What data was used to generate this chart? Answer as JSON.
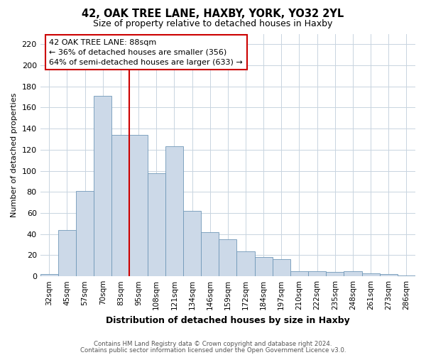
{
  "title1": "42, OAK TREE LANE, HAXBY, YORK, YO32 2YL",
  "title2": "Size of property relative to detached houses in Haxby",
  "xlabel": "Distribution of detached houses by size in Haxby",
  "ylabel": "Number of detached properties",
  "categories": [
    "32sqm",
    "45sqm",
    "57sqm",
    "70sqm",
    "83sqm",
    "95sqm",
    "108sqm",
    "121sqm",
    "134sqm",
    "146sqm",
    "159sqm",
    "172sqm",
    "184sqm",
    "197sqm",
    "210sqm",
    "222sqm",
    "235sqm",
    "248sqm",
    "261sqm",
    "273sqm",
    "286sqm"
  ],
  "values": [
    2,
    44,
    81,
    171,
    134,
    134,
    98,
    123,
    62,
    42,
    35,
    24,
    18,
    16,
    5,
    5,
    4,
    5,
    3,
    2,
    1
  ],
  "bar_color": "#ccd9e8",
  "bar_edge_color": "#7098b8",
  "bar_width": 1.0,
  "vline_x_idx": 4,
  "vline_color": "#cc0000",
  "annotation_title": "42 OAK TREE LANE: 88sqm",
  "annotation_line1": "← 36% of detached houses are smaller (356)",
  "annotation_line2": "64% of semi-detached houses are larger (633) →",
  "annotation_box_color": "#ffffff",
  "annotation_box_edge": "#cc0000",
  "ylim": [
    0,
    230
  ],
  "yticks": [
    0,
    20,
    40,
    60,
    80,
    100,
    120,
    140,
    160,
    180,
    200,
    220
  ],
  "footnote1": "Contains HM Land Registry data © Crown copyright and database right 2024.",
  "footnote2": "Contains public sector information licensed under the Open Government Licence v3.0.",
  "bg_color": "#ffffff",
  "grid_color": "#c8d4e0",
  "fig_width": 6.0,
  "fig_height": 5.0,
  "dpi": 100
}
